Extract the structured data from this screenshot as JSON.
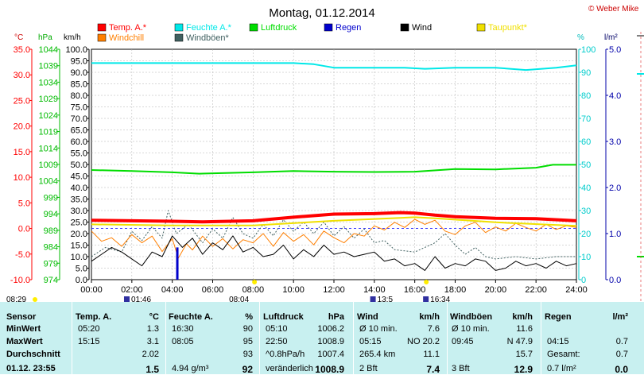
{
  "header": {
    "title": "Montag, 01.12.2014",
    "copyright": "© Weber Mike"
  },
  "legend": [
    {
      "label": "Temp. A.*",
      "color": "#ff0000"
    },
    {
      "label": "Feuchte A.*",
      "color": "#00e8e8"
    },
    {
      "label": "Luftdruck",
      "color": "#00dd00"
    },
    {
      "label": "Regen",
      "color": "#0000cc"
    },
    {
      "label": "Wind",
      "color": "#000000"
    },
    {
      "label": "Taupunkt*",
      "color": "#f0e000"
    },
    {
      "label": "Windchill",
      "color": "#ff7f00"
    },
    {
      "label": "Windböen*",
      "color": "#406060"
    }
  ],
  "axis_units": {
    "temp": "°C",
    "pressure": "hPa",
    "wind": "km/h",
    "humidity": "%",
    "rain": "l/m²"
  },
  "colors": {
    "temp_axis": "#ff0000",
    "pressure_axis": "#00bb00",
    "humidity_axis": "#00cccc",
    "rain_axis": "#0000aa",
    "summary_bg": "#c8f0f0"
  },
  "chart_data": {
    "type": "line",
    "x_ticks": [
      "00:00",
      "02:00",
      "04:00",
      "06:00",
      "08:00",
      "10:00",
      "12:00",
      "14:00",
      "16:00",
      "18:00",
      "20:00",
      "22:00",
      "24:00"
    ],
    "axes": {
      "temp": {
        "range": [
          -10,
          35
        ],
        "ticks": [
          "35.0",
          "30.0",
          "25.0",
          "20.0",
          "15.0",
          "10.0",
          "5.0",
          "0.0",
          "-5.0",
          "-10.0"
        ]
      },
      "pressure": {
        "range": [
          974,
          1044
        ],
        "ticks": [
          "1044",
          "1039",
          "1034",
          "1029",
          "1024",
          "1019",
          "1014",
          "1009",
          "1004",
          "999",
          "994",
          "989",
          "984",
          "979",
          "974"
        ]
      },
      "wind": {
        "range": [
          0,
          100
        ],
        "ticks": [
          "100.0",
          "95.0",
          "90.0",
          "85.0",
          "80.0",
          "75.0",
          "70.0",
          "65.0",
          "60.0",
          "55.0",
          "50.0",
          "45.0",
          "40.0",
          "35.0",
          "30.0",
          "25.0",
          "20.0",
          "15.0",
          "10.0",
          "5.0",
          "0.0"
        ]
      },
      "humidity": {
        "range": [
          0,
          100
        ],
        "ticks": [
          "100",
          "90",
          "80",
          "70",
          "60",
          "50",
          "40",
          "30",
          "20",
          "10",
          "0"
        ]
      },
      "rain": {
        "range": [
          0,
          5
        ],
        "ticks": [
          "5.0",
          "4.0",
          "3.0",
          "2.0",
          "1.0",
          "0.0"
        ]
      }
    },
    "series": [
      {
        "name": "Temp. A.*",
        "axis": "temp",
        "color": "#ff0000",
        "width": 4,
        "points": [
          [
            0,
            1.6
          ],
          [
            2,
            1.5
          ],
          [
            4,
            1.4
          ],
          [
            5.5,
            1.3
          ],
          [
            8,
            1.5
          ],
          [
            10,
            2.2
          ],
          [
            12,
            2.8
          ],
          [
            14,
            2.9
          ],
          [
            15.25,
            3.1
          ],
          [
            16,
            3.0
          ],
          [
            17,
            2.6
          ],
          [
            18,
            2.3
          ],
          [
            20,
            2.0
          ],
          [
            22,
            1.9
          ],
          [
            24,
            1.5
          ]
        ]
      },
      {
        "name": "Feuchte A.*",
        "axis": "humidity",
        "color": "#00e8e8",
        "width": 2,
        "points": [
          [
            0,
            94
          ],
          [
            4,
            94
          ],
          [
            8,
            94
          ],
          [
            10,
            94
          ],
          [
            11,
            93.5
          ],
          [
            12,
            92
          ],
          [
            14,
            92
          ],
          [
            15.5,
            92
          ],
          [
            16.5,
            91.5
          ],
          [
            18,
            92
          ],
          [
            20,
            92
          ],
          [
            21.5,
            91
          ],
          [
            23,
            92
          ],
          [
            24,
            93
          ]
        ]
      },
      {
        "name": "Luftdruck",
        "axis": "pressure",
        "color": "#00dd00",
        "width": 2,
        "points": [
          [
            0,
            1007.3
          ],
          [
            2,
            1007
          ],
          [
            4,
            1006.6
          ],
          [
            5.33,
            1006.2
          ],
          [
            8,
            1006.6
          ],
          [
            10,
            1007
          ],
          [
            12,
            1006.8
          ],
          [
            14,
            1006.7
          ],
          [
            16,
            1006.8
          ],
          [
            18,
            1007.6
          ],
          [
            20,
            1007.5
          ],
          [
            22,
            1008
          ],
          [
            22.83,
            1008.9
          ],
          [
            24,
            1008.9
          ]
        ]
      },
      {
        "name": "Taupunkt*",
        "axis": "temp",
        "color": "#f0e000",
        "width": 2,
        "points": [
          [
            0,
            0.8
          ],
          [
            4,
            0.6
          ],
          [
            8,
            0.6
          ],
          [
            12,
            1.5
          ],
          [
            16,
            2.2
          ],
          [
            17,
            2.0
          ],
          [
            20,
            1.2
          ],
          [
            24,
            0.5
          ]
        ]
      },
      {
        "name": "Windchill",
        "axis": "temp",
        "color": "#ff7f00",
        "width": 1,
        "points": [
          [
            0,
            -0.5
          ],
          [
            0.5,
            -2.5
          ],
          [
            1,
            -1.8
          ],
          [
            1.5,
            -3.5
          ],
          [
            2,
            -1.2
          ],
          [
            2.5,
            -2.8
          ],
          [
            3,
            -1.5
          ],
          [
            3.5,
            -4.5
          ],
          [
            4,
            -2
          ],
          [
            4.3,
            -5.8
          ],
          [
            4.7,
            -3
          ],
          [
            5,
            -4.2
          ],
          [
            5.5,
            -1.5
          ],
          [
            6,
            -3.5
          ],
          [
            6.5,
            -2
          ],
          [
            7,
            -4
          ],
          [
            7.5,
            -2.2
          ],
          [
            8,
            -2.8
          ],
          [
            8.5,
            -1
          ],
          [
            9,
            -3.5
          ],
          [
            9.5,
            -0.8
          ],
          [
            10,
            -2.5
          ],
          [
            10.5,
            -1.2
          ],
          [
            11,
            -3.2
          ],
          [
            11.5,
            -0.5
          ],
          [
            12,
            -1.8
          ],
          [
            12.5,
            -2.8
          ],
          [
            13,
            -1
          ],
          [
            13.5,
            -1.5
          ],
          [
            14,
            0.5
          ],
          [
            14.5,
            -0.3
          ],
          [
            15,
            1.2
          ],
          [
            15.5,
            0.2
          ],
          [
            16,
            1.8
          ],
          [
            16.5,
            0.8
          ],
          [
            17,
            1.6
          ],
          [
            17.5,
            -0.5
          ],
          [
            18,
            -1.2
          ],
          [
            18.5,
            0.5
          ],
          [
            19,
            1.2
          ],
          [
            19.5,
            -0.8
          ],
          [
            20,
            0.3
          ],
          [
            20.5,
            -0.5
          ],
          [
            21,
            1.0
          ],
          [
            21.5,
            0.2
          ],
          [
            22,
            -0.5
          ],
          [
            22.5,
            0.8
          ],
          [
            23,
            -0.2
          ],
          [
            23.5,
            0.5
          ],
          [
            24,
            0.2
          ]
        ]
      },
      {
        "name": "Windböen*",
        "axis": "wind",
        "color": "#406060",
        "width": 1,
        "dash": "2,2",
        "points": [
          [
            0,
            10
          ],
          [
            0.7,
            14
          ],
          [
            1.5,
            12
          ],
          [
            2,
            21
          ],
          [
            2.5,
            17
          ],
          [
            3,
            23
          ],
          [
            3.5,
            18
          ],
          [
            3.8,
            30
          ],
          [
            4.2,
            20
          ],
          [
            4.8,
            24
          ],
          [
            5.5,
            16
          ],
          [
            6,
            22
          ],
          [
            6.5,
            18
          ],
          [
            7,
            27
          ],
          [
            7.5,
            20
          ],
          [
            8,
            18
          ],
          [
            8.5,
            24
          ],
          [
            9,
            19
          ],
          [
            9.5,
            26
          ],
          [
            10,
            21
          ],
          [
            10.5,
            25
          ],
          [
            11,
            20
          ],
          [
            11.5,
            25
          ],
          [
            12,
            19
          ],
          [
            12.5,
            23
          ],
          [
            13,
            18
          ],
          [
            13.5,
            22
          ],
          [
            14,
            16
          ],
          [
            14.5,
            17
          ],
          [
            15,
            13
          ],
          [
            16,
            12
          ],
          [
            16.5,
            14
          ],
          [
            17,
            16
          ],
          [
            17.5,
            20
          ],
          [
            18,
            15
          ],
          [
            18.5,
            11
          ],
          [
            19,
            14
          ],
          [
            19.5,
            10
          ],
          [
            20,
            9
          ],
          [
            21,
            10
          ],
          [
            22,
            9
          ],
          [
            23,
            10
          ],
          [
            24,
            10
          ]
        ]
      },
      {
        "name": "Wind",
        "axis": "wind",
        "color": "#000000",
        "width": 1,
        "points": [
          [
            0,
            8
          ],
          [
            0.5,
            11
          ],
          [
            1,
            14
          ],
          [
            1.5,
            12
          ],
          [
            2,
            9
          ],
          [
            2.5,
            6
          ],
          [
            3,
            12
          ],
          [
            3.5,
            10
          ],
          [
            4,
            19
          ],
          [
            4.5,
            14
          ],
          [
            5,
            18
          ],
          [
            5.5,
            11
          ],
          [
            6,
            16
          ],
          [
            6.5,
            13
          ],
          [
            7,
            19
          ],
          [
            7.5,
            12
          ],
          [
            8,
            14
          ],
          [
            8.5,
            10
          ],
          [
            9,
            11
          ],
          [
            9.5,
            15
          ],
          [
            10,
            9
          ],
          [
            10.5,
            13
          ],
          [
            11,
            10
          ],
          [
            11.5,
            15
          ],
          [
            12,
            11
          ],
          [
            12.5,
            12
          ],
          [
            13,
            10
          ],
          [
            13.5,
            11
          ],
          [
            14,
            12
          ],
          [
            14.5,
            8
          ],
          [
            15,
            9
          ],
          [
            15.5,
            6
          ],
          [
            16,
            7
          ],
          [
            16.5,
            4
          ],
          [
            17,
            10
          ],
          [
            17.5,
            5
          ],
          [
            18,
            7
          ],
          [
            18.5,
            6
          ],
          [
            19,
            9
          ],
          [
            19.5,
            8
          ],
          [
            20,
            4
          ],
          [
            20.5,
            5
          ],
          [
            21,
            8
          ],
          [
            21.5,
            6
          ],
          [
            22,
            7
          ],
          [
            22.5,
            5
          ],
          [
            23,
            8
          ],
          [
            23.5,
            6
          ],
          [
            24,
            7
          ]
        ]
      }
    ],
    "rain_bars": [
      {
        "x": 4.25,
        "value": 0.7,
        "color": "#0000cc"
      }
    ],
    "reference_lines": [
      {
        "axis": "temp",
        "value": 0,
        "color": "#4040ff",
        "dash": "3,3"
      }
    ],
    "markers": [
      {
        "label": "08:29",
        "x": 0
      },
      {
        "label": "01:46",
        "x": 1.77
      },
      {
        "label": "08:04",
        "x": 8.07
      },
      {
        "label": "13:5",
        "x": 13.95
      },
      {
        "label": "16:34",
        "x": 16.57
      }
    ]
  },
  "summary": {
    "headers": [
      "Sensor",
      "Temp. A.",
      "°C",
      "Feuchte A.",
      "%",
      "Luftdruck",
      "hPa",
      "Wind",
      "km/h",
      "Windböen",
      "km/h",
      "Regen",
      "l/m²"
    ],
    "rows": [
      {
        "label": "MinWert",
        "cells": [
          "05:20",
          "1.3",
          "16:30",
          "90",
          "05:10",
          "1006.2",
          "Ø 10 min.",
          "7.6",
          "Ø 10 min.",
          "11.6",
          "",
          ""
        ]
      },
      {
        "label": "MaxWert",
        "cells": [
          "15:15",
          "3.1",
          "08:05",
          "95",
          "22:50",
          "1008.9",
          "05:15",
          "NO 20.2",
          "09:45",
          "N 47.9",
          "04:15",
          "0.7"
        ]
      },
      {
        "label": "Durchschnitt",
        "cells": [
          "",
          "2.02",
          "",
          "93",
          "^0.8hPa/h",
          "1007.4",
          "265.4 km",
          "11.1",
          "",
          "15.7",
          "Gesamt:",
          "0.7"
        ]
      },
      {
        "label": "01.12. 23:55",
        "cells": [
          "",
          "1.5",
          "4.94 g/m³",
          "92",
          "veränderlich",
          "1008.9",
          "2 Bft",
          "7.4",
          "3 Bft",
          "12.9",
          "0.7 l/m²",
          "0.0"
        ]
      }
    ]
  }
}
